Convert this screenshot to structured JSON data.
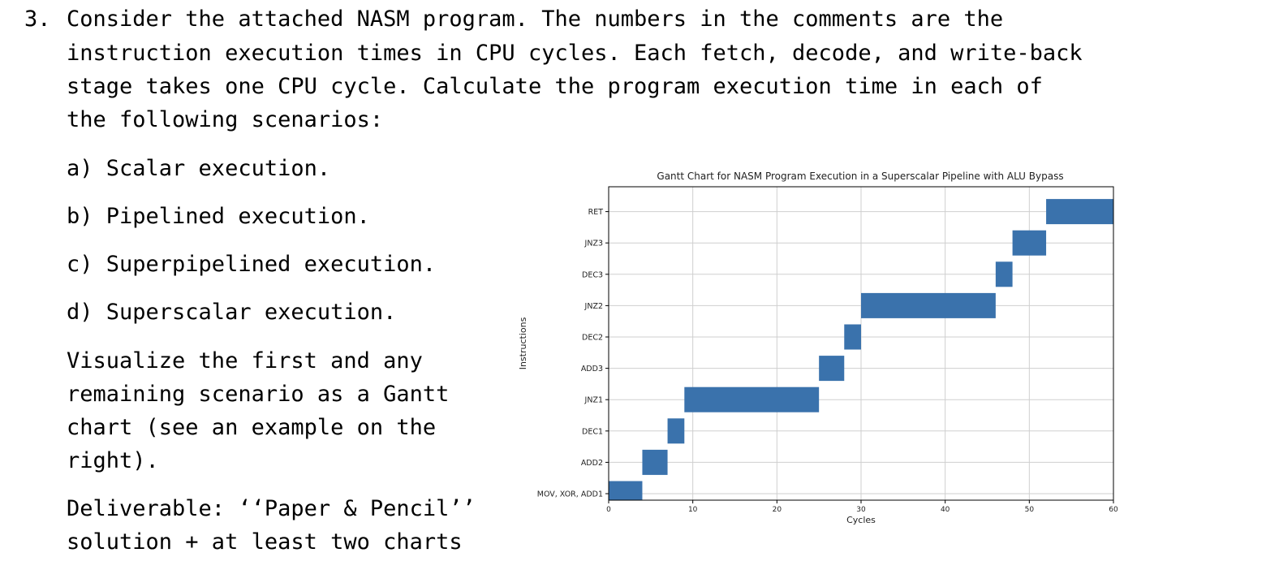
{
  "question": {
    "number": "3.",
    "intro_lines": [
      "Consider the attached NASM program. The numbers in the comments are the",
      "instruction execution times in CPU cycles. Each fetch, decode, and write-back",
      "stage takes one CPU cycle. Calculate the program execution time in each of",
      "the following scenarios:"
    ],
    "items": [
      "a) Scalar execution.",
      "b) Pipelined execution.",
      "c) Superpipelined execution.",
      "d) Superscalar execution."
    ],
    "visualize_lines": [
      "Visualize the first and any",
      "remaining scenario as a Gantt",
      "chart (see an example on the",
      "right)."
    ],
    "deliverable_lines": [
      "Deliverable: ‘‘Paper & Pencil’’",
      "solution + at least two charts"
    ]
  },
  "chart_data": {
    "type": "gantt",
    "title": "Gantt Chart for NASM Program Execution in a Superscalar Pipeline with ALU Bypass",
    "xlabel": "Cycles",
    "ylabel": "Instructions",
    "xlim": [
      0,
      60
    ],
    "xticks": [
      0,
      10,
      20,
      30,
      40,
      50,
      60
    ],
    "grid": true,
    "bar_color": "#3a72ac",
    "tasks": [
      {
        "label": "MOV, XOR, ADD1",
        "start": 0,
        "end": 4
      },
      {
        "label": "ADD2",
        "start": 4,
        "end": 7
      },
      {
        "label": "DEC1",
        "start": 7,
        "end": 9
      },
      {
        "label": "JNZ1",
        "start": 9,
        "end": 25
      },
      {
        "label": "ADD3",
        "start": 25,
        "end": 28
      },
      {
        "label": "DEC2",
        "start": 28,
        "end": 30
      },
      {
        "label": "JNZ2",
        "start": 30,
        "end": 46
      },
      {
        "label": "DEC3",
        "start": 46,
        "end": 48
      },
      {
        "label": "JNZ3",
        "start": 48,
        "end": 52
      },
      {
        "label": "RET",
        "start": 52,
        "end": 60
      }
    ]
  }
}
